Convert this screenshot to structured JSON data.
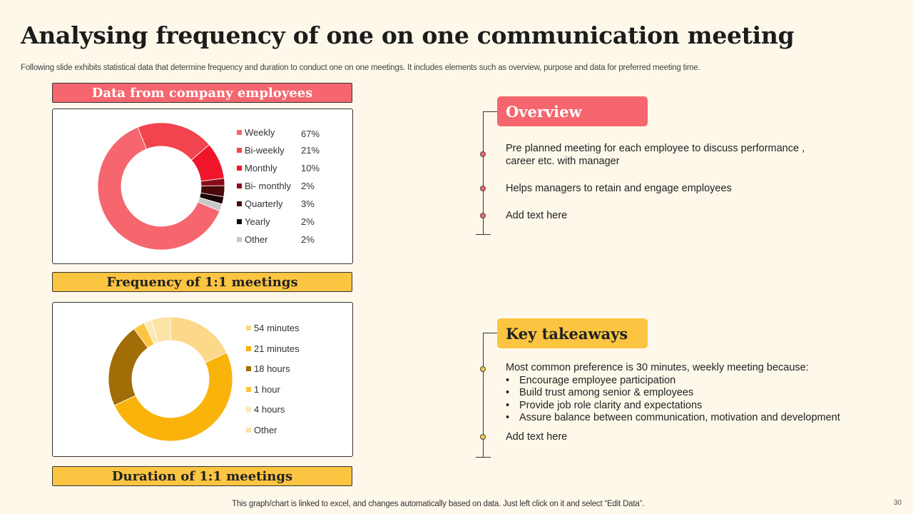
{
  "title": "Analysing frequency of one on one communication meeting",
  "subtitle": "Following slide exhibits statistical data that determine frequency and duration to conduct one on one meetings. It includes elements such as overview, purpose and data for preferred meeting time.",
  "section1": {
    "header": "Data from company employees",
    "footer": "Frequency of 1:1 meetings"
  },
  "section2": {
    "footer": "Duration  of 1:1 meetings"
  },
  "chart_data": [
    {
      "type": "pie",
      "categories": [
        "Weekly",
        "Bi-weekly",
        "Monthly",
        "Bi- monthly",
        "Quarterly",
        "Yearly",
        "Other"
      ],
      "values": [
        67,
        21,
        10,
        2,
        3,
        2,
        2
      ],
      "value_labels": [
        "67%",
        "21%",
        "10%",
        "2%",
        "3%",
        "2%",
        "2%"
      ],
      "colors": [
        "#f5666f",
        "#f2444f",
        "#f0152a",
        "#8b0c18",
        "#4a0a0a",
        "#1a0508",
        "#c8c8c8"
      ],
      "donut": true,
      "legend": "right"
    },
    {
      "type": "pie",
      "categories": [
        "54 minutes",
        "21 minutes",
        "18 hours",
        "1 hour",
        "4 hours",
        "Other"
      ],
      "values": [
        18,
        50,
        22,
        3,
        2,
        5
      ],
      "colors": [
        "#fbd88a",
        "#f9b30a",
        "#a06d06",
        "#fbc441",
        "#fde8b8",
        "#fce2a5"
      ],
      "donut": true,
      "legend": "right"
    }
  ],
  "overview": {
    "title": "Overview",
    "items": [
      "Pre planned meeting for each employee to discuss performance , career etc. with manager",
      "Helps managers to retain and engage employees",
      "Add text here"
    ]
  },
  "takeaways": {
    "title": "Key takeaways",
    "intro": "Most common preference is 30 minutes, weekly meeting because:",
    "bullets": [
      "Encourage employee participation",
      "Build trust among senior & employees",
      "Provide job role clarity and expectations",
      "Assure balance between communication, motivation and development"
    ],
    "last": "Add text here"
  },
  "footer": "This graph/chart is linked to excel,  and changes automatically based on data. Just left click on it and select “Edit Data”.",
  "page_number": "30",
  "colors": {
    "background": "#fdf8ea",
    "accent_red": "#f5666f",
    "accent_yellow": "#fbc441"
  }
}
